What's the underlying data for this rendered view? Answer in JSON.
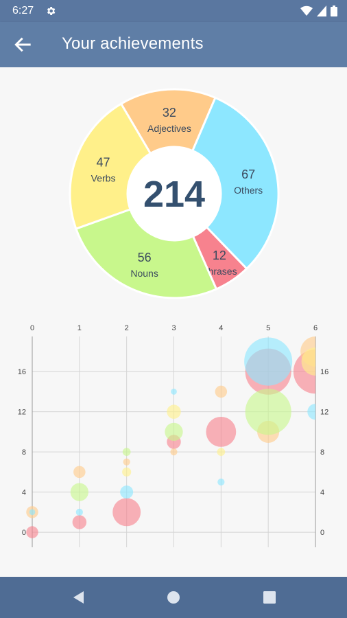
{
  "status_bar": {
    "time": "6:27",
    "icons": [
      "settings-icon",
      "wifi-icon",
      "signal-icon",
      "battery-icon"
    ]
  },
  "app_bar": {
    "title": "Your achievements",
    "back_icon": "arrow-left-icon",
    "color": "#5f7ea6"
  },
  "nav_bar": {
    "icons": [
      "triangle-back-icon",
      "circle-home-icon",
      "square-recents-icon"
    ]
  },
  "chart_data": [
    {
      "type": "pie",
      "center_label": "214",
      "slices": [
        {
          "name": "Adjectives",
          "value": 32,
          "color": "#ffcb8a"
        },
        {
          "name": "Others",
          "value": 67,
          "color": "#8de7ff"
        },
        {
          "name": "Phrases",
          "value": 12,
          "color": "#f7828e"
        },
        {
          "name": "Nouns",
          "value": 56,
          "color": "#c8f78c"
        },
        {
          "name": "Verbs",
          "value": 47,
          "color": "#fff08a"
        }
      ]
    },
    {
      "type": "scatter",
      "subtype": "bubble",
      "x_ticks": [
        "0",
        "1",
        "2",
        "3",
        "4",
        "5",
        "6"
      ],
      "y_ticks": [
        "0",
        "4",
        "8",
        "12",
        "16"
      ],
      "xlim": [
        0,
        6
      ],
      "ylim": [
        -1.5,
        19.5
      ],
      "grid": true,
      "series": [
        {
          "color": "#f7828e",
          "points": [
            [
              0,
              0,
              1.2
            ],
            [
              1,
              1,
              1.4
            ],
            [
              2,
              2,
              2.8
            ],
            [
              3,
              9,
              1.4
            ],
            [
              4,
              10,
              3.0
            ],
            [
              5,
              16,
              4.6
            ],
            [
              6,
              16,
              4.4
            ]
          ]
        },
        {
          "color": "#ffcb8a",
          "points": [
            [
              0,
              2,
              1.2
            ],
            [
              1,
              6,
              1.2
            ],
            [
              2,
              7,
              0.7
            ],
            [
              3,
              8,
              0.7
            ],
            [
              4,
              14,
              1.2
            ],
            [
              5,
              10,
              2.2
            ],
            [
              6,
              18,
              3.0
            ]
          ]
        },
        {
          "color": "#c8f78c",
          "points": [
            [
              1,
              4,
              1.8
            ],
            [
              2,
              8,
              0.8
            ],
            [
              3,
              10,
              1.8
            ],
            [
              5,
              12,
              4.6
            ]
          ]
        },
        {
          "color": "#fff08a",
          "points": [
            [
              2,
              6,
              0.9
            ],
            [
              3,
              12,
              1.4
            ],
            [
              4,
              8,
              0.8
            ],
            [
              6,
              17,
              2.8
            ]
          ]
        },
        {
          "color": "#8de7ff",
          "points": [
            [
              0,
              2,
              0.6
            ],
            [
              1,
              2,
              0.7
            ],
            [
              2,
              4,
              1.3
            ],
            [
              3,
              14,
              0.6
            ],
            [
              4,
              5,
              0.7
            ],
            [
              5,
              17,
              4.8
            ],
            [
              6,
              12,
              1.6
            ]
          ]
        }
      ]
    }
  ]
}
